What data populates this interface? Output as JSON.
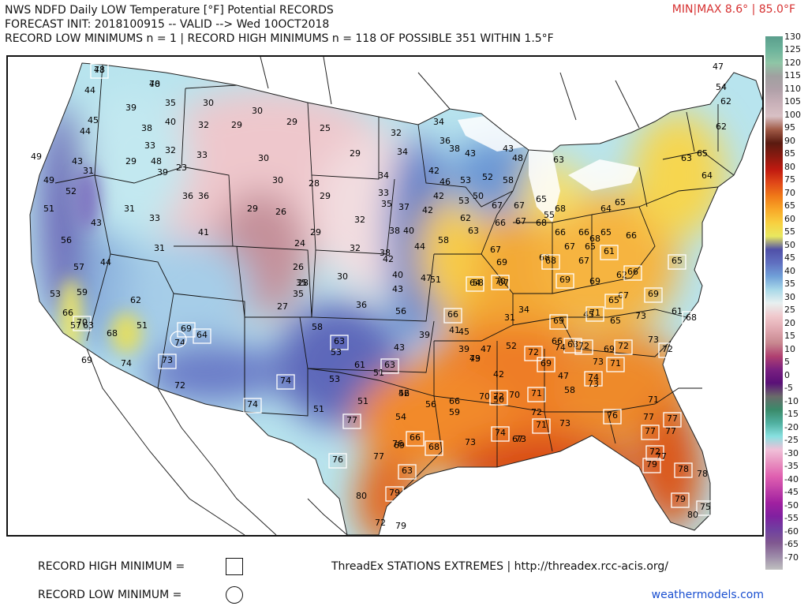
{
  "header": {
    "title": "NWS NDFD Daily LOW Temperature [°F] Potential RECORDS",
    "forecast": "FORECAST INIT: 2018100915 -- VALID --> Wed 10OCT2018",
    "counts": "RECORD LOW MINIMUMS n = 1 | RECORD HIGH MINIMUMS n = 118 OF POSSIBLE 351 WITHIN 1.5°F",
    "minmax": "MIN|MAX 8.6° | 85.0°F"
  },
  "colorbar": {
    "labels": [
      "130",
      "125",
      "120",
      "115",
      "110",
      "105",
      "100",
      "95",
      "90",
      "85",
      "80",
      "75",
      "70",
      "65",
      "60",
      "55",
      "50",
      "45",
      "40",
      "35",
      "30",
      "25",
      "20",
      "15",
      "10",
      "5",
      "0",
      "-5",
      "-10",
      "-15",
      "-20",
      "-25",
      "-30",
      "-35",
      "-40",
      "-45",
      "-50",
      "-55",
      "-60",
      "-65",
      "-70"
    ],
    "colors": [
      "#5a9e8c",
      "#6db39b",
      "#8fc5a6",
      "#a0a0a0",
      "#b0a0a8",
      "#c8b0b8",
      "#d8c0c4",
      "#a05a46",
      "#5a1a10",
      "#8a1a10",
      "#c01a10",
      "#e04818",
      "#f07a18",
      "#f8a828",
      "#f8d040",
      "#e8e860",
      "#5050a8",
      "#6070c0",
      "#70a0d8",
      "#a8d8e8",
      "#e8f0f0",
      "#f0c8cc",
      "#e0a8b0",
      "#c88890",
      "#b04070",
      "#7a2080",
      "#5a1078",
      "#6a6a6a",
      "#3a8a6a",
      "#50b0a0",
      "#88e0e0",
      "#f0c0d8",
      "#e890c0",
      "#e060b0",
      "#c040a8",
      "#a020a0",
      "#8020a0",
      "#7040a0",
      "#805890",
      "#9c8aa8",
      "#c0c0c0"
    ]
  },
  "legend": {
    "record_high_label": "RECORD HIGH MINIMUM =",
    "record_low_label": "RECORD LOW MINIMUM ="
  },
  "source": "ThreadEx STATIONS EXTREMES | http://threadex.rcc-acis.org/",
  "brand": "weathermodels.com",
  "stations": [
    {
      "v": "43"
    },
    {
      "v": "40"
    },
    {
      "v": "44"
    },
    {
      "v": "39"
    },
    {
      "v": "35"
    },
    {
      "v": "30"
    },
    {
      "v": "30"
    },
    {
      "v": "29"
    },
    {
      "v": "45"
    },
    {
      "v": "38"
    },
    {
      "v": "40"
    },
    {
      "v": "32"
    },
    {
      "v": "29"
    },
    {
      "v": "25"
    },
    {
      "v": "34"
    },
    {
      "v": "47"
    },
    {
      "v": "54"
    },
    {
      "v": "62"
    },
    {
      "v": "44"
    },
    {
      "v": "33"
    },
    {
      "v": "32"
    },
    {
      "v": "33"
    },
    {
      "v": "30"
    },
    {
      "v": "29"
    },
    {
      "v": "32"
    },
    {
      "v": "36"
    },
    {
      "v": "43"
    },
    {
      "v": "63"
    },
    {
      "v": "62"
    },
    {
      "v": "49"
    },
    {
      "v": "43"
    },
    {
      "v": "31"
    },
    {
      "v": "29"
    },
    {
      "v": "48"
    },
    {
      "v": "39"
    },
    {
      "v": "23"
    },
    {
      "v": "34"
    },
    {
      "v": "38"
    },
    {
      "v": "42"
    },
    {
      "v": "48"
    },
    {
      "v": "43"
    },
    {
      "v": "63"
    },
    {
      "v": "65"
    },
    {
      "v": "64"
    },
    {
      "v": "49"
    },
    {
      "v": "52"
    },
    {
      "v": "36"
    },
    {
      "v": "36"
    },
    {
      "v": "30"
    },
    {
      "v": "28"
    },
    {
      "v": "29"
    },
    {
      "v": "34"
    },
    {
      "v": "33"
    },
    {
      "v": "42"
    },
    {
      "v": "46"
    },
    {
      "v": "53"
    },
    {
      "v": "52"
    },
    {
      "v": "58"
    },
    {
      "v": "65"
    },
    {
      "v": "51"
    },
    {
      "v": "31"
    },
    {
      "v": "33"
    },
    {
      "v": "29"
    },
    {
      "v": "26"
    },
    {
      "v": "35"
    },
    {
      "v": "37"
    },
    {
      "v": "42"
    },
    {
      "v": "53"
    },
    {
      "v": "50"
    },
    {
      "v": "67"
    },
    {
      "v": "67"
    },
    {
      "v": "55"
    },
    {
      "v": "68"
    },
    {
      "v": "64"
    },
    {
      "v": "65"
    },
    {
      "v": "56"
    },
    {
      "v": "43"
    },
    {
      "v": "41"
    },
    {
      "v": "32"
    },
    {
      "v": "29"
    },
    {
      "v": "24"
    },
    {
      "v": "38"
    },
    {
      "v": "40"
    },
    {
      "v": "58"
    },
    {
      "v": "62"
    },
    {
      "v": "63"
    },
    {
      "v": "66"
    },
    {
      "v": "67"
    },
    {
      "v": "68"
    },
    {
      "v": "66"
    },
    {
      "v": "66"
    },
    {
      "v": "68"
    },
    {
      "v": "65"
    },
    {
      "v": "66"
    },
    {
      "v": "31"
    },
    {
      "v": "32"
    },
    {
      "v": "38"
    },
    {
      "v": "42"
    },
    {
      "v": "44"
    },
    {
      "v": "67"
    },
    {
      "v": "67"
    },
    {
      "v": "65"
    },
    {
      "v": "61"
    },
    {
      "v": "68"
    },
    {
      "v": "65"
    },
    {
      "v": "57"
    },
    {
      "v": "44"
    },
    {
      "v": "26"
    },
    {
      "v": "35"
    },
    {
      "v": "30"
    },
    {
      "v": "40"
    },
    {
      "v": "51"
    },
    {
      "v": "58"
    },
    {
      "v": "69"
    },
    {
      "v": "68"
    },
    {
      "v": "67"
    },
    {
      "v": "69"
    },
    {
      "v": "62"
    },
    {
      "v": "66"
    },
    {
      "v": "53"
    },
    {
      "v": "59"
    },
    {
      "v": "62"
    },
    {
      "v": "28"
    },
    {
      "v": "35"
    },
    {
      "v": "27"
    },
    {
      "v": "36"
    },
    {
      "v": "43"
    },
    {
      "v": "47"
    },
    {
      "v": "64"
    },
    {
      "v": "67"
    },
    {
      "v": "70"
    },
    {
      "v": "69"
    },
    {
      "v": "69"
    },
    {
      "v": "67"
    },
    {
      "v": "65"
    },
    {
      "v": "66"
    },
    {
      "v": "70"
    },
    {
      "v": "63"
    },
    {
      "v": "57"
    },
    {
      "v": "51"
    },
    {
      "v": "58"
    },
    {
      "v": "56"
    },
    {
      "v": "66"
    },
    {
      "v": "34"
    },
    {
      "v": "45"
    },
    {
      "v": "61"
    },
    {
      "v": "69"
    },
    {
      "v": "65"
    },
    {
      "v": "71"
    },
    {
      "v": "73"
    },
    {
      "v": "68"
    },
    {
      "v": "68"
    },
    {
      "v": "69"
    },
    {
      "v": "74"
    },
    {
      "v": "64"
    },
    {
      "v": "31"
    },
    {
      "v": "45"
    },
    {
      "v": "41"
    },
    {
      "v": "63"
    },
    {
      "v": "53"
    },
    {
      "v": "43"
    },
    {
      "v": "39"
    },
    {
      "v": "39"
    },
    {
      "v": "47"
    },
    {
      "v": "52"
    },
    {
      "v": "66"
    },
    {
      "v": "63"
    },
    {
      "v": "69"
    },
    {
      "v": "72"
    },
    {
      "v": "74"
    },
    {
      "v": "72"
    },
    {
      "v": "73"
    },
    {
      "v": "72"
    },
    {
      "v": "69"
    },
    {
      "v": "73"
    },
    {
      "v": "74"
    },
    {
      "v": "53"
    },
    {
      "v": "61"
    },
    {
      "v": "63"
    },
    {
      "v": "42"
    },
    {
      "v": "47"
    },
    {
      "v": "49"
    },
    {
      "v": "72"
    },
    {
      "v": "73"
    },
    {
      "v": "69"
    },
    {
      "v": "73"
    },
    {
      "v": "71"
    },
    {
      "v": "72"
    },
    {
      "v": "74"
    },
    {
      "v": "51"
    },
    {
      "v": "46"
    },
    {
      "v": "50"
    },
    {
      "v": "58"
    },
    {
      "v": "70"
    },
    {
      "v": "74"
    },
    {
      "v": "73"
    },
    {
      "v": "74"
    },
    {
      "v": "51"
    },
    {
      "v": "51"
    },
    {
      "v": "52"
    },
    {
      "v": "56"
    },
    {
      "v": "66"
    },
    {
      "v": "72"
    },
    {
      "v": "70"
    },
    {
      "v": "71"
    },
    {
      "v": "71"
    },
    {
      "v": "77"
    },
    {
      "v": "54"
    },
    {
      "v": "59"
    },
    {
      "v": "72"
    },
    {
      "v": "71"
    },
    {
      "v": "73"
    },
    {
      "v": "76"
    },
    {
      "v": "77"
    },
    {
      "v": "77"
    },
    {
      "v": "76"
    },
    {
      "v": "66"
    },
    {
      "v": "69"
    },
    {
      "v": "68"
    },
    {
      "v": "73"
    },
    {
      "v": "74"
    },
    {
      "v": "73"
    },
    {
      "v": "77"
    },
    {
      "v": "77"
    },
    {
      "v": "76"
    },
    {
      "v": "77"
    },
    {
      "v": "63"
    },
    {
      "v": "67"
    },
    {
      "v": "72"
    },
    {
      "v": "77"
    },
    {
      "v": "78"
    },
    {
      "v": "78"
    },
    {
      "v": "79"
    },
    {
      "v": "80"
    },
    {
      "v": "79"
    },
    {
      "v": "72"
    },
    {
      "v": "75"
    },
    {
      "v": "80"
    },
    {
      "v": "79"
    },
    {
      "v": "79"
    },
    {
      "v": "78"
    },
    {
      "v": "78"
    }
  ]
}
